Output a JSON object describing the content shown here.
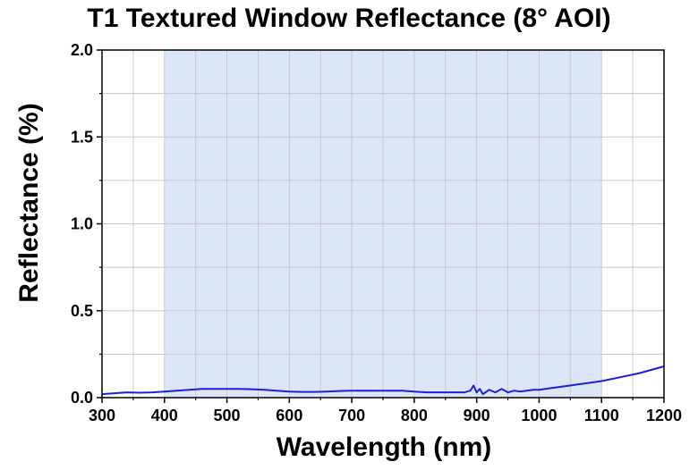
{
  "chart_data": {
    "type": "line",
    "title": "T1 Textured Window Reflectance (8° AOI)",
    "xlabel": "Wavelength (nm)",
    "ylabel": "Reflectance (%)",
    "xlim": [
      300,
      1200
    ],
    "ylim": [
      0.0,
      2.0
    ],
    "x_ticks": [
      300,
      400,
      500,
      600,
      700,
      800,
      900,
      1000,
      1100,
      1200
    ],
    "x_tick_labels": [
      "300",
      "400",
      "500",
      "600",
      "700",
      "800",
      "900",
      "1000",
      "1100",
      "1200"
    ],
    "y_ticks": [
      0.0,
      0.5,
      1.0,
      1.5,
      2.0
    ],
    "y_tick_labels": [
      "0.0",
      "0.5",
      "1.0",
      "1.5",
      "2.0"
    ],
    "grid": true,
    "shaded_band": {
      "x_range": [
        400,
        1100
      ],
      "color": "#dce6f7"
    },
    "series": [
      {
        "color": "#1f1fd6",
        "x": [
          300,
          320,
          340,
          360,
          380,
          400,
          420,
          440,
          460,
          480,
          500,
          520,
          540,
          560,
          580,
          600,
          620,
          640,
          660,
          680,
          700,
          720,
          740,
          760,
          780,
          800,
          820,
          840,
          860,
          880,
          890,
          895,
          900,
          905,
          910,
          920,
          930,
          940,
          950,
          960,
          970,
          980,
          990,
          1000,
          1010,
          1020,
          1040,
          1060,
          1080,
          1100,
          1120,
          1140,
          1160,
          1180,
          1200
        ],
        "y": [
          0.02,
          0.025,
          0.03,
          0.028,
          0.03,
          0.035,
          0.04,
          0.045,
          0.05,
          0.05,
          0.05,
          0.05,
          0.048,
          0.045,
          0.04,
          0.035,
          0.033,
          0.033,
          0.035,
          0.038,
          0.04,
          0.04,
          0.04,
          0.04,
          0.04,
          0.035,
          0.03,
          0.03,
          0.03,
          0.03,
          0.04,
          0.07,
          0.03,
          0.05,
          0.02,
          0.045,
          0.03,
          0.05,
          0.03,
          0.04,
          0.035,
          0.04,
          0.045,
          0.045,
          0.05,
          0.055,
          0.065,
          0.075,
          0.085,
          0.095,
          0.11,
          0.125,
          0.14,
          0.16,
          0.18
        ]
      }
    ]
  }
}
